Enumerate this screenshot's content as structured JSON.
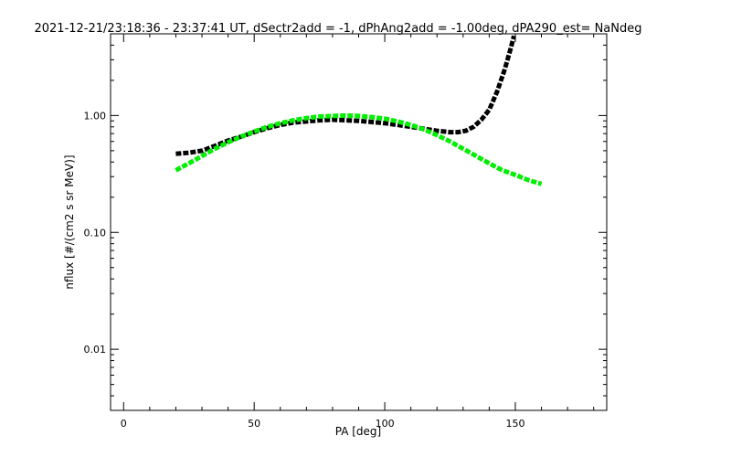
{
  "chart_data": {
    "type": "line",
    "title": "2021-12-21/23:18:36 - 23:37:41 UT, dSectr2add = -1, dPhAng2add = -1.00deg, dPA290_est=    NaNdeg",
    "xlabel": "PA [deg]",
    "ylabel": "nflux [#/(cm2 s sr MeV)]",
    "xlim": [
      -5,
      185
    ],
    "ylim": [
      0.003,
      5
    ],
    "yscale": "log",
    "grid": false,
    "x_ticks": [
      0,
      50,
      100,
      150
    ],
    "x_tick_labels": [
      "0",
      "50",
      "100",
      "150"
    ],
    "y_ticks": [
      0.01,
      0.1,
      1.0
    ],
    "y_tick_labels": [
      "0.01",
      "0.10",
      "1.00"
    ],
    "series": [
      {
        "color": "#000000",
        "style": "dashed-thick",
        "x": [
          20,
          25,
          30,
          35,
          40,
          45,
          50,
          55,
          60,
          65,
          70,
          75,
          80,
          85,
          90,
          95,
          100,
          105,
          110,
          115,
          120,
          125,
          128,
          131,
          134,
          137,
          140,
          143,
          146,
          148,
          149.5
        ],
        "values": [
          0.47,
          0.48,
          0.5,
          0.55,
          0.61,
          0.66,
          0.72,
          0.78,
          0.83,
          0.87,
          0.89,
          0.91,
          0.92,
          0.91,
          0.9,
          0.88,
          0.86,
          0.83,
          0.8,
          0.77,
          0.74,
          0.72,
          0.72,
          0.74,
          0.8,
          0.92,
          1.12,
          1.6,
          2.5,
          3.6,
          4.8
        ]
      },
      {
        "color": "#00ee00",
        "style": "dashed-thick",
        "x": [
          20,
          25,
          30,
          35,
          40,
          45,
          50,
          55,
          60,
          65,
          70,
          75,
          80,
          85,
          90,
          95,
          100,
          105,
          110,
          115,
          120,
          125,
          130,
          135,
          140,
          145,
          150,
          155,
          160
        ],
        "values": [
          0.34,
          0.39,
          0.45,
          0.52,
          0.59,
          0.66,
          0.73,
          0.8,
          0.86,
          0.91,
          0.95,
          0.98,
          0.99,
          1.0,
          0.99,
          0.97,
          0.94,
          0.89,
          0.83,
          0.76,
          0.68,
          0.6,
          0.52,
          0.45,
          0.39,
          0.34,
          0.31,
          0.28,
          0.26
        ]
      }
    ]
  }
}
